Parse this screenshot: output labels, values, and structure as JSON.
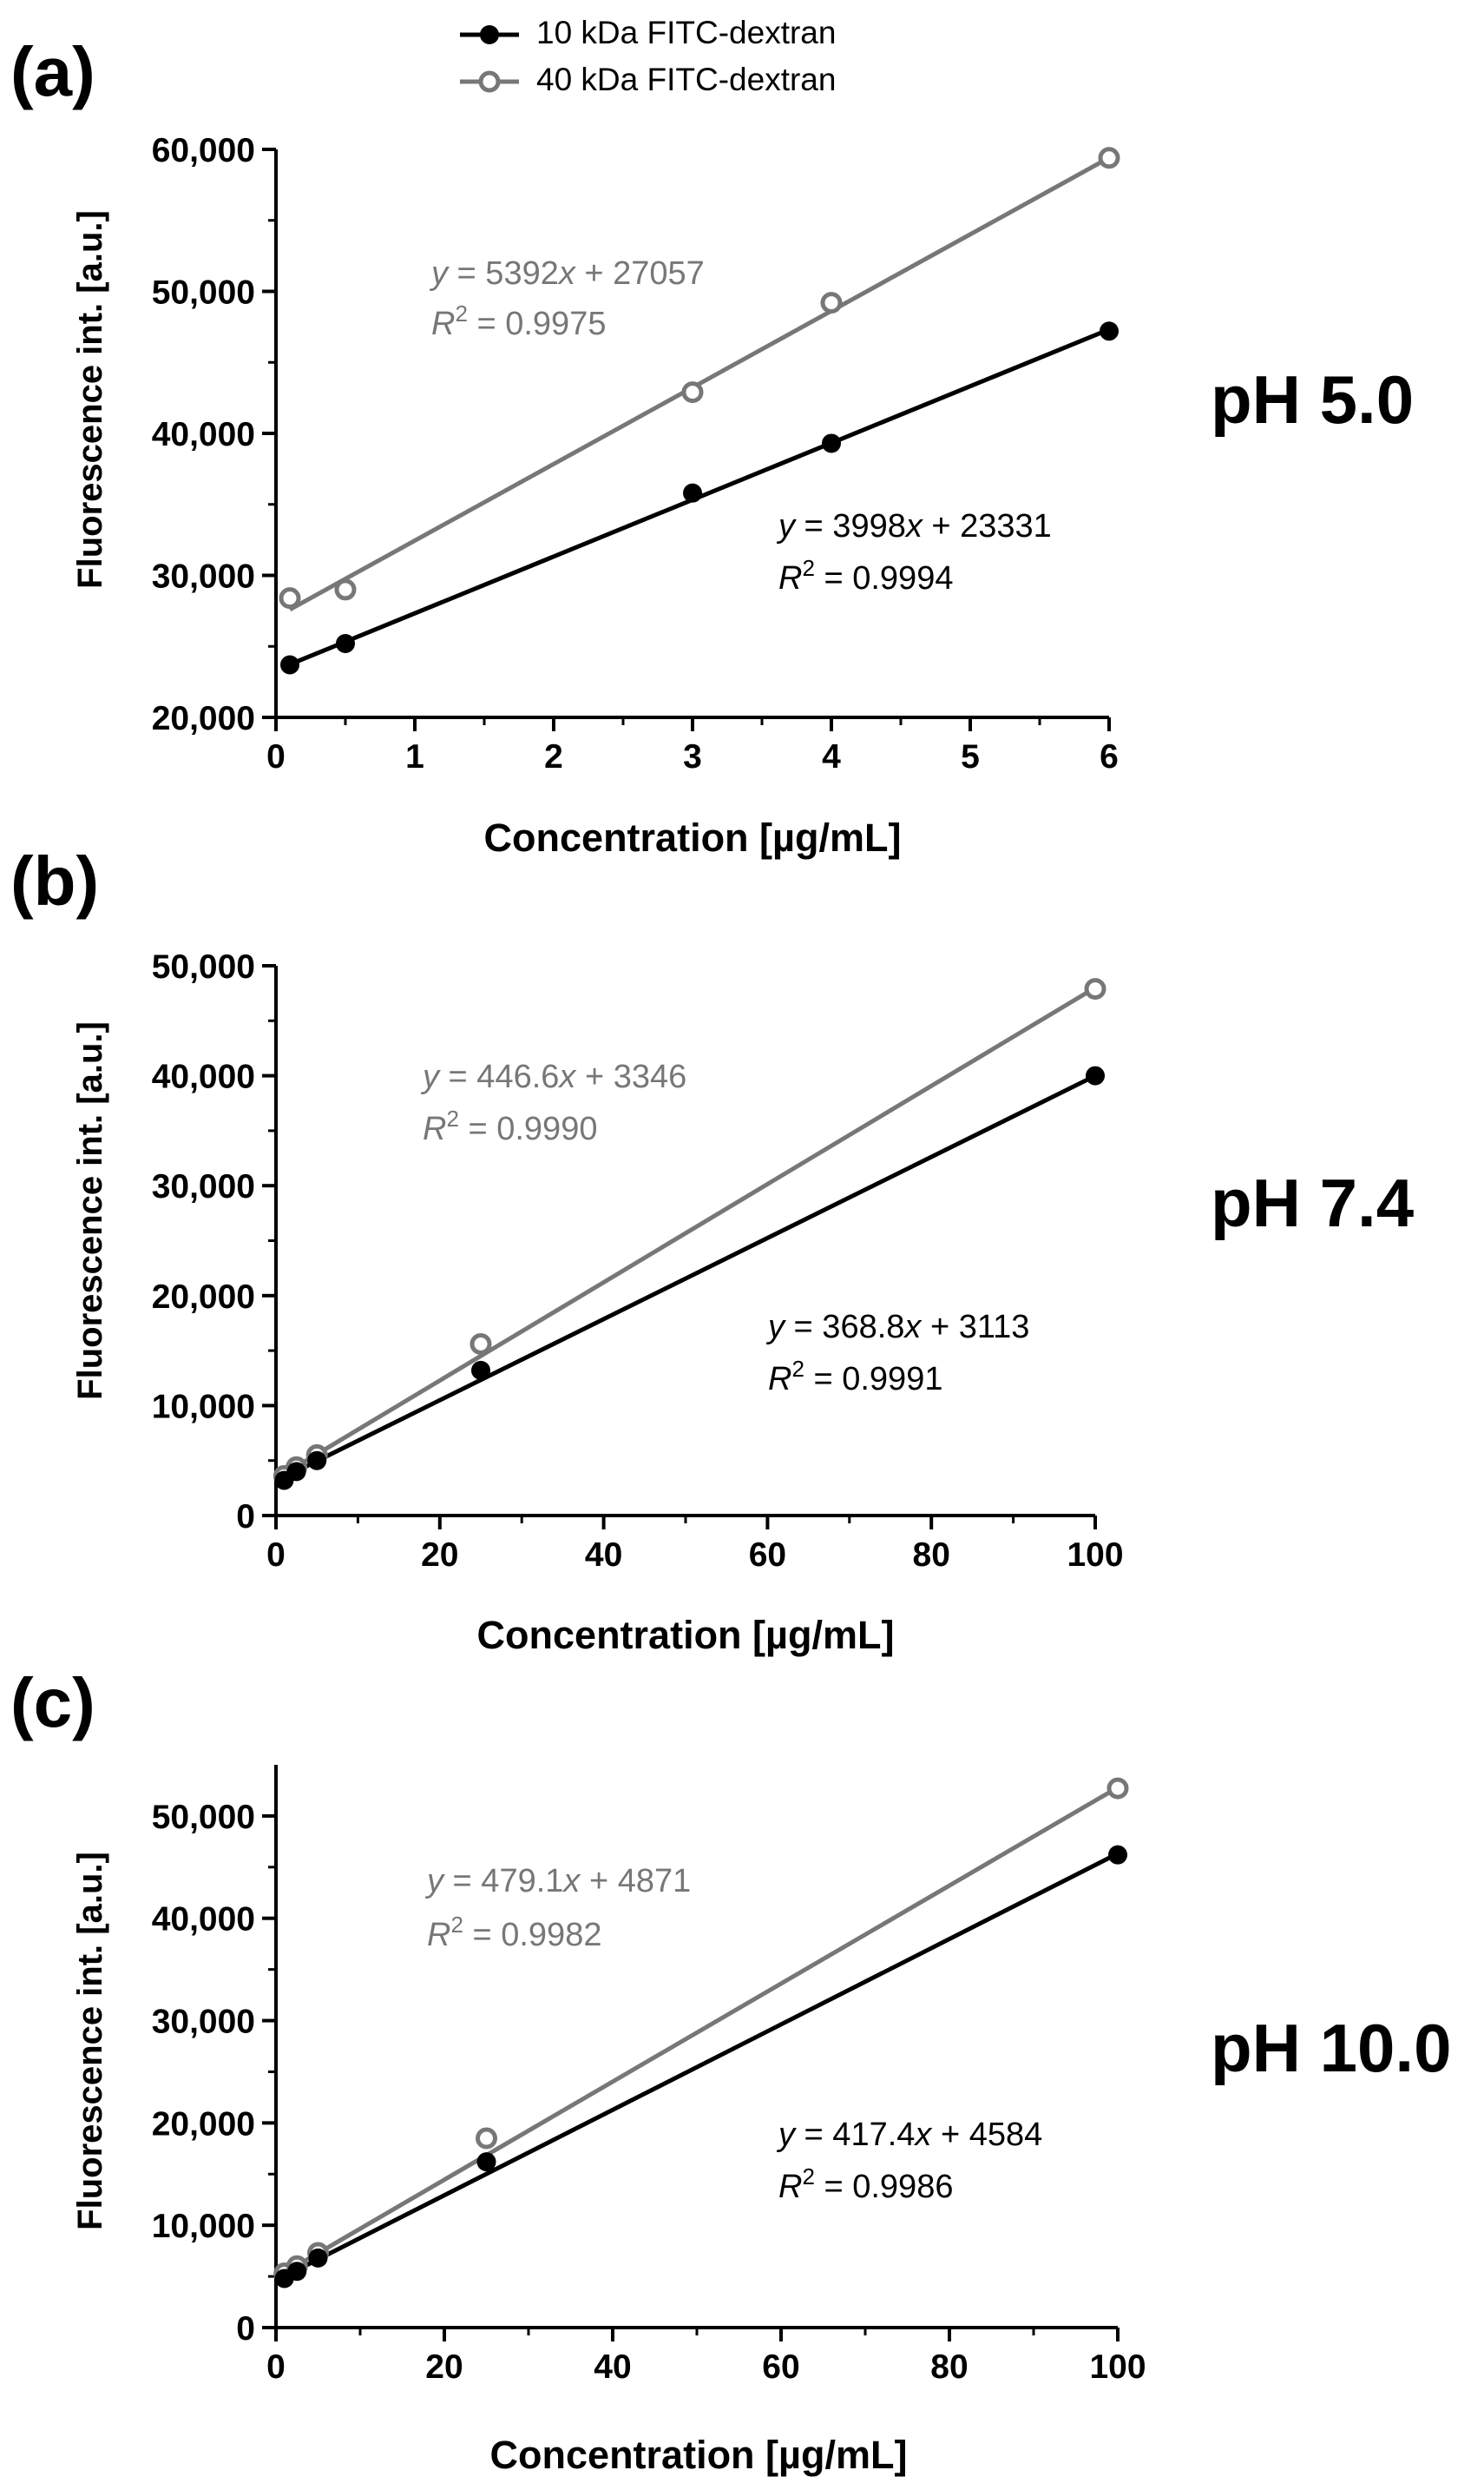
{
  "legend": {
    "position": "top-center",
    "entries": [
      {
        "label": "10 kDa FITC-dextran",
        "marker": "filled-circle",
        "color": "#000000"
      },
      {
        "label": "40 kDa FITC-dextran",
        "marker": "open-circle",
        "color": "#777777"
      }
    ]
  },
  "colors": {
    "series_10kda": "#000000",
    "series_40kda": "#777777",
    "axis": "#000000"
  },
  "chart_data": [
    {
      "panel": "(a)",
      "condition": "pH 5.0",
      "type": "scatter",
      "xlabel": "Concentration [µg/mL]",
      "ylabel": "Fluorescence int. [a.u.]",
      "xlim": [
        0,
        6
      ],
      "ylim": [
        20000,
        60000
      ],
      "xticks": [
        0,
        1,
        2,
        3,
        4,
        5,
        6
      ],
      "xminor": [
        0.5,
        1.5,
        2.5,
        3.5,
        4.5,
        5.5
      ],
      "yticks": [
        20000,
        30000,
        40000,
        50000,
        60000
      ],
      "xtick_labels": [
        "0",
        "1",
        "2",
        "3",
        "4",
        "5",
        "6"
      ],
      "ytick_labels": [
        "20,000",
        "30,000",
        "40,000",
        "50,000",
        "60,000"
      ],
      "grid": false,
      "series": [
        {
          "name": "10 kDa FITC-dextran",
          "color": "#000000",
          "filled": true,
          "x": [
            0.1,
            0.5,
            3,
            4,
            6
          ],
          "y": [
            23700,
            25200,
            35800,
            39300,
            47200
          ],
          "fit": {
            "slope": 3998,
            "intercept": 23331
          },
          "equation": {
            "y": "y",
            "lhs": " = 3998",
            "x": "x",
            "rhs": " + 23331"
          },
          "r2": {
            "r": "R",
            "sup": "2",
            "value": " = 0.9994"
          }
        },
        {
          "name": "40 kDa FITC-dextran",
          "color": "#777777",
          "filled": false,
          "x": [
            0.1,
            0.5,
            3,
            4,
            6
          ],
          "y": [
            28400,
            29000,
            42900,
            49200,
            59400
          ],
          "fit": {
            "slope": 5392,
            "intercept": 27057
          },
          "equation": {
            "y": "y",
            "lhs": " = 5392",
            "x": "x",
            "rhs": " + 27057"
          },
          "r2": {
            "r": "R",
            "sup": "2",
            "value": " = 0.9975"
          }
        }
      ]
    },
    {
      "panel": "(b)",
      "condition": "pH 7.4",
      "type": "scatter",
      "xlabel": "Concentration [µg/mL]",
      "ylabel": "Fluorescence int. [a.u.]",
      "xlim": [
        0,
        100
      ],
      "ylim": [
        0,
        50000
      ],
      "xticks": [
        0,
        20,
        40,
        60,
        80,
        100
      ],
      "xminor": [
        10,
        30,
        50,
        70,
        90
      ],
      "yticks": [
        0,
        10000,
        20000,
        30000,
        40000,
        50000
      ],
      "xtick_labels": [
        "0",
        "20",
        "40",
        "60",
        "80",
        "100"
      ],
      "ytick_labels": [
        "0",
        "10,000",
        "20,000",
        "30,000",
        "40,000",
        "50,000"
      ],
      "grid": false,
      "series": [
        {
          "name": "10 kDa FITC-dextran",
          "color": "#000000",
          "filled": true,
          "x": [
            1,
            2.5,
            5,
            25,
            100
          ],
          "y": [
            3200,
            4000,
            5000,
            13200,
            40000
          ],
          "fit": {
            "slope": 368.8,
            "intercept": 3113
          },
          "equation": {
            "y": "y",
            "lhs": " = 368.8",
            "x": "x",
            "rhs": " + 3113"
          },
          "r2": {
            "r": "R",
            "sup": "2",
            "value": " = 0.9991"
          }
        },
        {
          "name": "40 kDa FITC-dextran",
          "color": "#777777",
          "filled": false,
          "x": [
            1,
            2.5,
            5,
            25,
            100
          ],
          "y": [
            3600,
            4400,
            5500,
            15600,
            47900
          ],
          "fit": {
            "slope": 446.6,
            "intercept": 3346
          },
          "equation": {
            "y": "y",
            "lhs": " = 446.6",
            "x": "x",
            "rhs": " + 3346"
          },
          "r2": {
            "r": "R",
            "sup": "2",
            "value": " = 0.9990"
          }
        }
      ]
    },
    {
      "panel": "(c)",
      "condition": "pH 10.0",
      "type": "scatter",
      "xlabel": "Concentration [µg/mL]",
      "ylabel": "Fluorescence int. [a.u.]",
      "xlim": [
        0,
        100
      ],
      "ylim": [
        0,
        55000
      ],
      "xticks": [
        0,
        20,
        40,
        60,
        80,
        100
      ],
      "xminor": [
        10,
        30,
        50,
        70,
        90
      ],
      "yticks": [
        0,
        10000,
        20000,
        30000,
        40000,
        50000
      ],
      "xtick_labels": [
        "0",
        "20",
        "40",
        "60",
        "80",
        "100"
      ],
      "ytick_labels": [
        "0",
        "10,000",
        "20,000",
        "30,000",
        "40,000",
        "50,000"
      ],
      "grid": false,
      "series": [
        {
          "name": "10 kDa FITC-dextran",
          "color": "#000000",
          "filled": true,
          "x": [
            1,
            2.5,
            5,
            25,
            100
          ],
          "y": [
            4800,
            5500,
            6800,
            16200,
            46200
          ],
          "fit": {
            "slope": 417.4,
            "intercept": 4584
          },
          "equation": {
            "y": "y",
            "lhs": " = 417.4",
            "x": "x",
            "rhs": " + 4584"
          },
          "r2": {
            "r": "R",
            "sup": "2",
            "value": " = 0.9986"
          }
        },
        {
          "name": "40 kDa FITC-dextran",
          "color": "#777777",
          "filled": false,
          "x": [
            1,
            2.5,
            5,
            25,
            100
          ],
          "y": [
            5300,
            6000,
            7300,
            18500,
            52700
          ],
          "fit": {
            "slope": 479.1,
            "intercept": 4871
          },
          "equation": {
            "y": "y",
            "lhs": " = 479.1",
            "x": "x",
            "rhs": " + 4871"
          },
          "r2": {
            "r": "R",
            "sup": "2",
            "value": " = 0.9982"
          }
        }
      ]
    }
  ]
}
